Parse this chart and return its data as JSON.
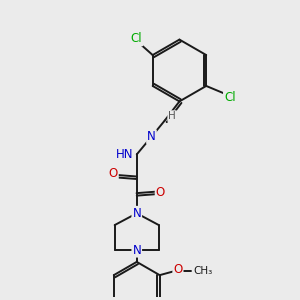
{
  "background_color": "#ebebeb",
  "bond_color": "#1a1a1a",
  "atom_colors": {
    "N": "#0000cc",
    "O": "#cc0000",
    "Cl": "#00aa00",
    "H": "#555555",
    "C": "#1a1a1a"
  },
  "figsize": [
    3.0,
    3.0
  ],
  "dpi": 100
}
